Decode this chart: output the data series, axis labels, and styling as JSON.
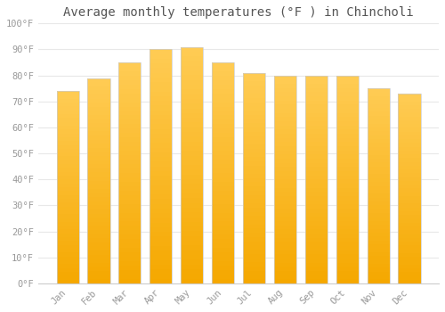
{
  "title": "Average monthly temperatures (°F ) in Chincholi",
  "months": [
    "Jan",
    "Feb",
    "Mar",
    "Apr",
    "May",
    "Jun",
    "Jul",
    "Aug",
    "Sep",
    "Oct",
    "Nov",
    "Dec"
  ],
  "values": [
    74,
    79,
    85,
    90,
    91,
    85,
    81,
    80,
    80,
    80,
    75,
    73
  ],
  "bar_color_light": "#FFCC44",
  "bar_color_dark": "#F5A800",
  "bar_edge_color": "#cccccc",
  "ylim": [
    0,
    100
  ],
  "yticks": [
    0,
    10,
    20,
    30,
    40,
    50,
    60,
    70,
    80,
    90,
    100
  ],
  "ytick_labels": [
    "0°F",
    "10°F",
    "20°F",
    "30°F",
    "40°F",
    "50°F",
    "60°F",
    "70°F",
    "80°F",
    "90°F",
    "100°F"
  ],
  "bg_color": "#ffffff",
  "grid_color": "#e8e8e8",
  "title_fontsize": 10,
  "tick_fontsize": 7.5,
  "font_family": "monospace",
  "tick_color": "#999999",
  "bar_width": 0.72
}
